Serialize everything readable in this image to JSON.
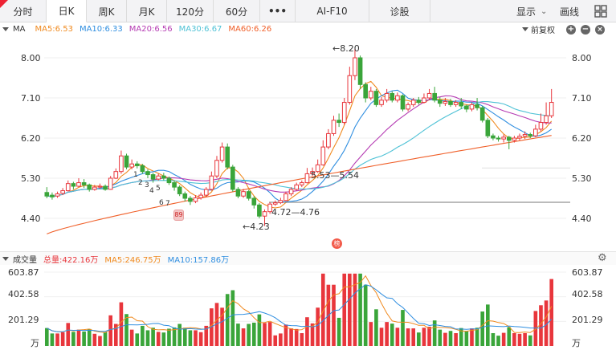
{
  "tabs": [
    {
      "label": "分时",
      "active": false
    },
    {
      "label": "日K",
      "active": true
    },
    {
      "label": "周K",
      "active": false
    },
    {
      "label": "月K",
      "active": false
    },
    {
      "label": "120分",
      "active": false
    },
    {
      "label": "60分",
      "active": false
    },
    {
      "label": "•••",
      "active": false
    },
    {
      "label": "AI-F10",
      "active": false
    },
    {
      "label": "诊股",
      "active": false
    }
  ],
  "toolbar": {
    "display_label": "显示",
    "draw_label": "画线"
  },
  "ma_legend": {
    "title": "MA",
    "ma5": "MA5:6.53",
    "ma10": "MA10:6.33",
    "ma20": "MA20:6.56",
    "ma30": "MA30:6.67",
    "ma60": "MA60:6.26",
    "adjust": "前复权"
  },
  "colors": {
    "up": "#e8363c",
    "down": "#3aa53a",
    "ma5": "#f08a1f",
    "ma10": "#2f8ee0",
    "ma20": "#b53bb3",
    "ma30": "#4fc2d6",
    "ma60": "#f0602a"
  },
  "price_axis": [
    "8.00",
    "7.10",
    "6.20",
    "5.30",
    "4.40"
  ],
  "annotations": {
    "high": "←8.20",
    "low": "←4.23",
    "range1": "5.53—5.54",
    "range2": "4.72—4.76",
    "markers": [
      "1",
      "2",
      "3",
      "4",
      "5",
      "6",
      "7",
      "8",
      "9"
    ],
    "badge": "榜"
  },
  "volume_legend": {
    "title": "成交量",
    "total": "总量:422.16万",
    "ma5": "MA5:246.75万",
    "ma10": "MA10:157.86万"
  },
  "volume_axis": [
    "603.87",
    "402.58",
    "201.29",
    "万"
  ],
  "chart_data": {
    "type": "candlestick",
    "ylim": [
      4.0,
      8.4
    ],
    "candles": [
      [
        4.98,
        4.9,
        5.1,
        4.85
      ],
      [
        4.92,
        4.88,
        4.98,
        4.82
      ],
      [
        4.9,
        4.95,
        5.0,
        4.86
      ],
      [
        4.96,
        5.02,
        5.08,
        4.92
      ],
      [
        5.02,
        5.18,
        5.25,
        5.0
      ],
      [
        5.18,
        5.12,
        5.22,
        5.05
      ],
      [
        5.12,
        5.2,
        5.3,
        5.1
      ],
      [
        5.2,
        5.15,
        5.28,
        5.08
      ],
      [
        5.15,
        5.05,
        5.18,
        5.0
      ],
      [
        5.05,
        5.1,
        5.15,
        5.02
      ],
      [
        5.1,
        5.12,
        5.18,
        5.06
      ],
      [
        5.12,
        5.05,
        5.16,
        5.02
      ],
      [
        5.05,
        5.3,
        5.35,
        5.04
      ],
      [
        5.3,
        5.45,
        5.52,
        5.28
      ],
      [
        5.45,
        5.8,
        5.92,
        5.4
      ],
      [
        5.8,
        5.55,
        5.85,
        5.5
      ],
      [
        5.55,
        5.62,
        5.72,
        5.5
      ],
      [
        5.62,
        5.58,
        5.68,
        5.52
      ],
      [
        5.58,
        5.45,
        5.62,
        5.4
      ],
      [
        5.45,
        5.38,
        5.5,
        5.3
      ],
      [
        5.38,
        5.28,
        5.42,
        5.2
      ],
      [
        5.28,
        5.35,
        5.4,
        5.25
      ],
      [
        5.35,
        5.3,
        5.42,
        5.25
      ],
      [
        5.3,
        5.2,
        5.34,
        5.15
      ],
      [
        5.2,
        5.1,
        5.25,
        5.02
      ],
      [
        5.1,
        4.95,
        5.14,
        4.9
      ],
      [
        4.95,
        4.85,
        5.0,
        4.78
      ],
      [
        4.85,
        4.78,
        4.9,
        4.7
      ],
      [
        4.78,
        4.86,
        4.92,
        4.74
      ],
      [
        4.86,
        4.92,
        4.98,
        4.82
      ],
      [
        4.92,
        5.05,
        5.1,
        4.88
      ],
      [
        5.05,
        5.35,
        5.45,
        5.02
      ],
      [
        5.35,
        5.7,
        5.8,
        5.3
      ],
      [
        5.7,
        6.0,
        6.1,
        5.65
      ],
      [
        6.0,
        5.55,
        6.08,
        5.5
      ],
      [
        5.55,
        5.05,
        5.6,
        5.0
      ],
      [
        5.05,
        4.9,
        5.1,
        4.85
      ],
      [
        4.9,
        5.0,
        5.06,
        4.86
      ],
      [
        5.0,
        4.85,
        5.04,
        4.8
      ],
      [
        4.85,
        4.7,
        4.9,
        4.62
      ],
      [
        4.7,
        4.45,
        4.74,
        4.4
      ],
      [
        4.45,
        4.55,
        4.6,
        4.23
      ],
      [
        4.55,
        4.72,
        4.76,
        4.5
      ],
      [
        4.72,
        4.75,
        4.8,
        4.68
      ],
      [
        4.75,
        4.8,
        4.86,
        4.72
      ],
      [
        4.8,
        4.95,
        5.0,
        4.78
      ],
      [
        4.95,
        5.05,
        5.1,
        4.9
      ],
      [
        5.05,
        5.15,
        5.2,
        5.02
      ],
      [
        5.15,
        5.2,
        5.25,
        5.1
      ],
      [
        5.2,
        5.4,
        5.53,
        5.18
      ],
      [
        5.4,
        5.45,
        5.54,
        5.35
      ],
      [
        5.45,
        5.6,
        5.72,
        5.42
      ],
      [
        5.6,
        6.0,
        6.15,
        5.58
      ],
      [
        6.0,
        6.3,
        6.4,
        5.95
      ],
      [
        6.3,
        6.6,
        6.7,
        6.25
      ],
      [
        6.6,
        6.55,
        6.75,
        6.45
      ],
      [
        6.55,
        7.0,
        7.1,
        6.5
      ],
      [
        7.0,
        7.6,
        7.8,
        6.95
      ],
      [
        7.6,
        8.0,
        8.2,
        7.5
      ],
      [
        8.0,
        7.4,
        8.05,
        7.3
      ],
      [
        7.4,
        7.1,
        7.45,
        7.0
      ],
      [
        7.1,
        7.25,
        7.35,
        7.05
      ],
      [
        7.25,
        6.95,
        7.3,
        6.9
      ],
      [
        6.95,
        7.05,
        7.12,
        6.9
      ],
      [
        7.05,
        7.2,
        7.3,
        7.0
      ],
      [
        7.2,
        7.05,
        7.25,
        7.0
      ],
      [
        7.05,
        7.15,
        7.22,
        7.0
      ],
      [
        7.15,
        6.85,
        7.18,
        6.8
      ],
      [
        6.85,
        6.95,
        7.0,
        6.8
      ],
      [
        6.95,
        7.05,
        7.1,
        6.9
      ],
      [
        7.05,
        7.0,
        7.12,
        6.95
      ],
      [
        7.0,
        7.1,
        7.2,
        6.98
      ],
      [
        7.1,
        7.2,
        7.3,
        7.05
      ],
      [
        7.2,
        7.05,
        7.35,
        7.0
      ],
      [
        7.05,
        6.98,
        7.12,
        6.9
      ],
      [
        6.98,
        7.02,
        7.1,
        6.92
      ],
      [
        7.02,
        6.95,
        7.08,
        6.9
      ],
      [
        6.95,
        7.0,
        7.05,
        6.9
      ],
      [
        7.0,
        6.92,
        7.1,
        6.85
      ],
      [
        6.92,
        6.85,
        6.95,
        6.78
      ],
      [
        6.85,
        6.95,
        7.0,
        6.8
      ],
      [
        6.95,
        6.88,
        7.1,
        6.82
      ],
      [
        6.88,
        6.6,
        6.92,
        6.55
      ],
      [
        6.6,
        6.25,
        6.65,
        6.2
      ],
      [
        6.25,
        6.2,
        6.3,
        6.15
      ],
      [
        6.2,
        6.18,
        6.25,
        6.12
      ],
      [
        6.18,
        6.22,
        6.28,
        6.1
      ],
      [
        6.22,
        6.15,
        6.25,
        5.95
      ],
      [
        6.15,
        6.2,
        6.25,
        6.1
      ],
      [
        6.2,
        6.24,
        6.3,
        6.15
      ],
      [
        6.24,
        6.28,
        6.35,
        6.18
      ],
      [
        6.28,
        6.25,
        6.32,
        6.2
      ],
      [
        6.25,
        6.4,
        6.5,
        6.22
      ],
      [
        6.4,
        6.55,
        6.75,
        6.35
      ],
      [
        6.55,
        6.7,
        7.0,
        6.5
      ],
      [
        6.7,
        7.0,
        7.3,
        6.65
      ]
    ],
    "volume_ylim": [
      0,
      603.87
    ]
  }
}
